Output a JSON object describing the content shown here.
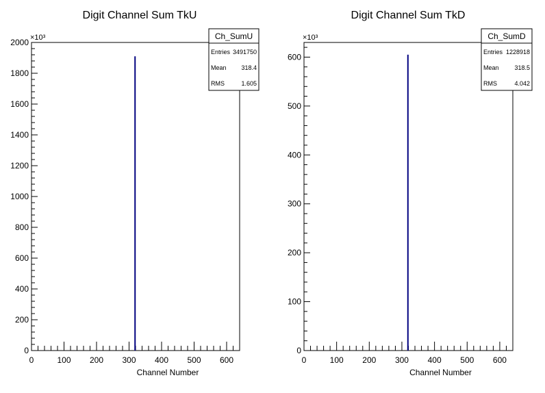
{
  "chart_data": [
    {
      "type": "bar",
      "title": "Digit Channel Sum TkU",
      "xlabel": "Channel Number",
      "ylabel": "",
      "y_exponent_label": "×10³",
      "xlim": [
        0,
        640
      ],
      "ylim": [
        0,
        2000
      ],
      "x_ticks": [
        0,
        100,
        200,
        300,
        400,
        500,
        600
      ],
      "y_ticks": [
        0,
        200,
        400,
        600,
        800,
        1000,
        1200,
        1400,
        1600,
        1800,
        2000
      ],
      "bars": [
        {
          "x": 318.4,
          "value": 1910
        }
      ],
      "line_color": "#000080",
      "stats": {
        "name": "Ch_SumU",
        "rows": [
          {
            "label": "Entries",
            "value": "3491750"
          },
          {
            "label": "Mean",
            "value": "318.4"
          },
          {
            "label": "RMS",
            "value": "1.605"
          }
        ]
      }
    },
    {
      "type": "bar",
      "title": "Digit Channel Sum TkD",
      "xlabel": "Channel Number",
      "ylabel": "",
      "y_exponent_label": "×10³",
      "xlim": [
        0,
        640
      ],
      "ylim": [
        0,
        630
      ],
      "x_ticks": [
        0,
        100,
        200,
        300,
        400,
        500,
        600
      ],
      "y_ticks": [
        0,
        100,
        200,
        300,
        400,
        500,
        600
      ],
      "bars": [
        {
          "x": 318.5,
          "value": 605
        }
      ],
      "line_color": "#000080",
      "stats": {
        "name": "Ch_SumD",
        "rows": [
          {
            "label": "Entries",
            "value": "1228918"
          },
          {
            "label": "Mean",
            "value": "318.5"
          },
          {
            "label": "RMS",
            "value": "4.042"
          }
        ]
      }
    }
  ]
}
